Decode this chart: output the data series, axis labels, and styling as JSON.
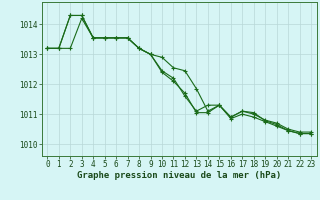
{
  "xlabel": "Graphe pression niveau de la mer (hPa)",
  "background_color": "#d6f5f5",
  "grid_color": "#b8d8d8",
  "line_color": "#1a6b1a",
  "ylim": [
    1009.6,
    1014.75
  ],
  "xlim": [
    -0.5,
    23.5
  ],
  "yticks": [
    1010,
    1011,
    1012,
    1013,
    1014
  ],
  "xticks": [
    0,
    1,
    2,
    3,
    4,
    5,
    6,
    7,
    8,
    9,
    10,
    11,
    12,
    13,
    14,
    15,
    16,
    17,
    18,
    19,
    20,
    21,
    22,
    23
  ],
  "series1": [
    1013.2,
    1013.2,
    1013.2,
    1014.2,
    1013.55,
    1013.55,
    1013.55,
    1013.55,
    1013.2,
    1013.0,
    1012.4,
    1012.1,
    1011.7,
    1011.05,
    1011.05,
    1011.3,
    1010.9,
    1011.1,
    1011.0,
    1010.8,
    1010.7,
    1010.5,
    1010.4,
    1010.4
  ],
  "series2": [
    1013.2,
    1013.2,
    1014.3,
    1014.3,
    1013.55,
    1013.55,
    1013.55,
    1013.55,
    1013.2,
    1013.0,
    1012.45,
    1012.2,
    1011.6,
    1011.1,
    1011.3,
    1011.3,
    1010.9,
    1011.1,
    1011.05,
    1010.78,
    1010.65,
    1010.45,
    1010.35,
    1010.35
  ],
  "series3": [
    1013.2,
    1013.2,
    1014.3,
    1014.3,
    1013.55,
    1013.55,
    1013.55,
    1013.55,
    1013.2,
    1013.0,
    1012.9,
    1012.55,
    1012.45,
    1011.85,
    1011.1,
    1011.3,
    1010.85,
    1011.0,
    1010.9,
    1010.75,
    1010.6,
    1010.45,
    1010.35,
    1010.35
  ],
  "tick_fontsize": 5.5,
  "xlabel_fontsize": 6.5,
  "ylabel_fontsize": 5.5
}
